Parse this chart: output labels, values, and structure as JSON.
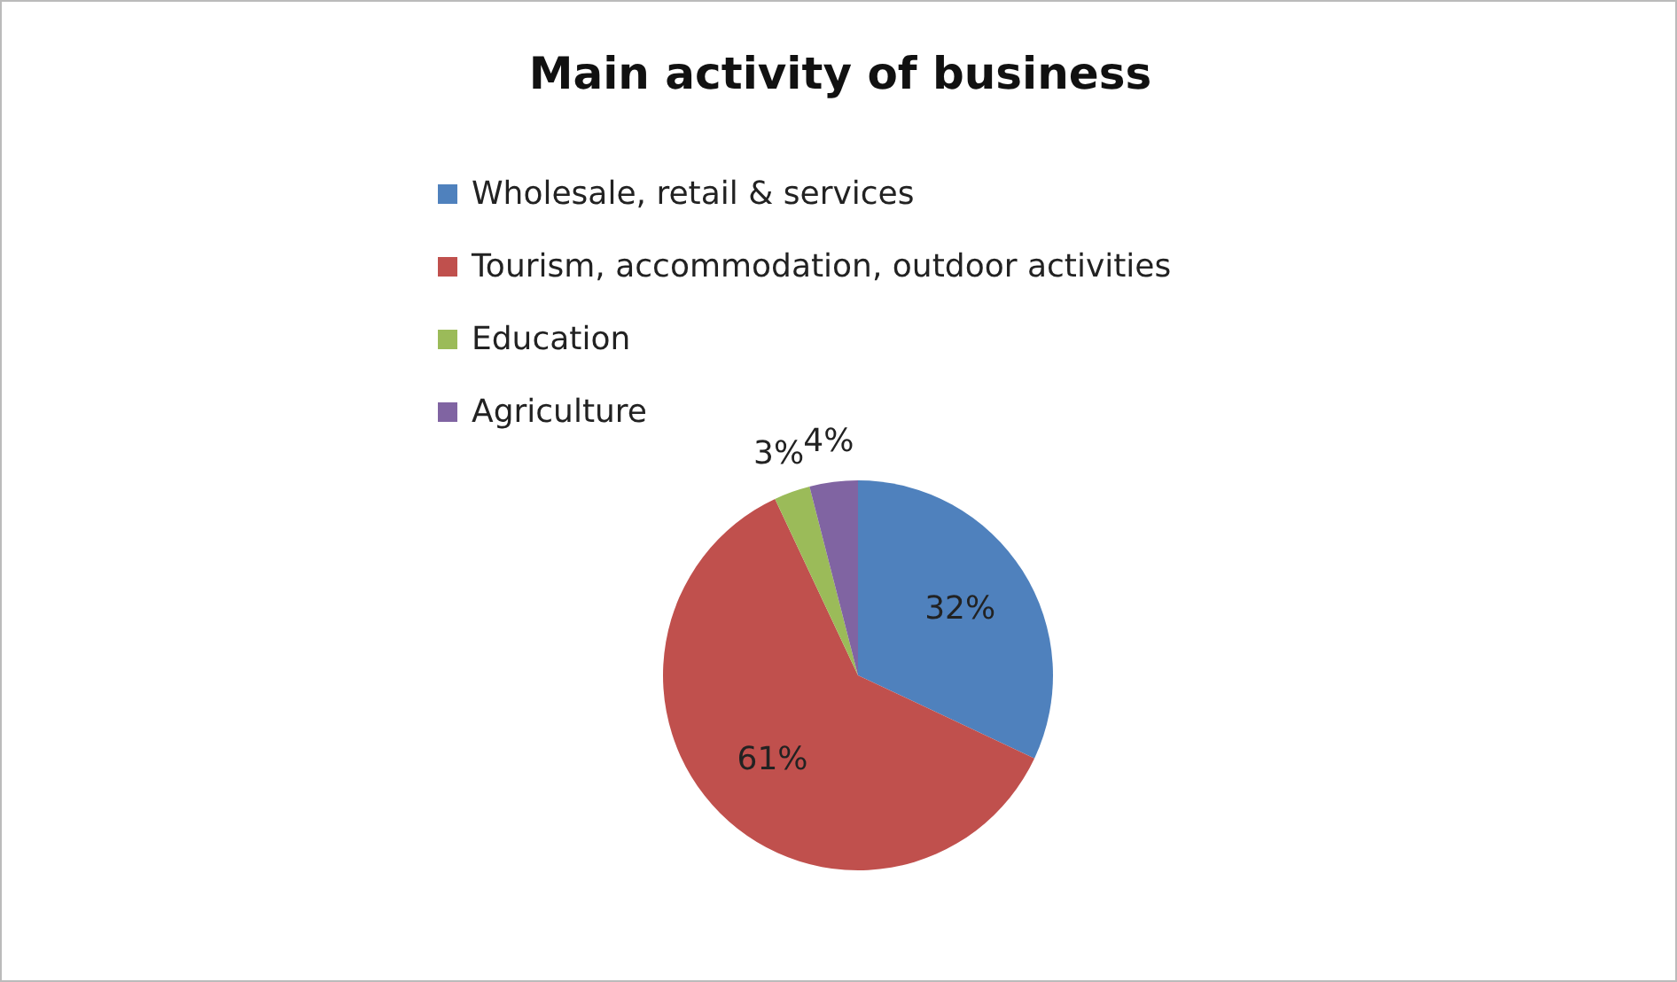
{
  "chart_data": {
    "type": "pie",
    "title": "Main activity of business",
    "categories": [
      "Wholesale, retail & services",
      "Tourism, accommodation, outdoor activities",
      "Education",
      "Agriculture"
    ],
    "values": [
      32,
      61,
      3,
      4
    ],
    "colors": [
      "#4f81bd",
      "#c0504d",
      "#9bbb59",
      "#8064a2"
    ],
    "value_labels": [
      "32%",
      "61%",
      "3%",
      "4%"
    ],
    "legend": "top"
  }
}
